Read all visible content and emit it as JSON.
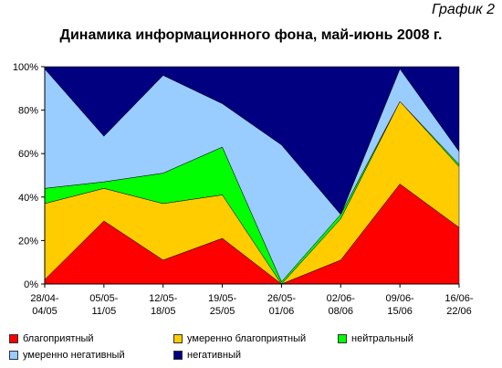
{
  "corner_label": "График 2",
  "chart_data": {
    "type": "area",
    "stacked": true,
    "title": "Динамика информационного фона, май-июнь 2008 г.",
    "categories": [
      "28/04-\n04/05",
      "05/05-\n11/05",
      "12/05-\n18/05",
      "19/05-\n25/05",
      "26/05-\n01/06",
      "02/06-\n08/06",
      "09/06-\n15/06",
      "16/06-\n22/06"
    ],
    "y_ticks": [
      "0%",
      "20%",
      "40%",
      "60%",
      "80%",
      "100%"
    ],
    "ylim": [
      0,
      100
    ],
    "grid": false,
    "legend_position": "bottom",
    "series": [
      {
        "name": "благоприятный",
        "color": "#FF0000",
        "values": [
          2,
          29,
          11,
          21,
          0,
          11,
          46,
          26
        ]
      },
      {
        "name": "умеренно благоприятный",
        "color": "#FFCC00",
        "values": [
          35,
          15,
          26,
          20,
          0,
          19,
          38,
          28
        ]
      },
      {
        "name": "нейтральный",
        "color": "#00FF00",
        "values": [
          7,
          3,
          14,
          22,
          1,
          2,
          0,
          1
        ]
      },
      {
        "name": "умеренно негативный",
        "color": "#99CCFF",
        "values": [
          55,
          21,
          45,
          20,
          63,
          0,
          15,
          6
        ]
      },
      {
        "name": "негативный",
        "color": "#000080",
        "values": [
          1,
          32,
          4,
          17,
          36,
          68,
          1,
          39
        ]
      }
    ]
  }
}
